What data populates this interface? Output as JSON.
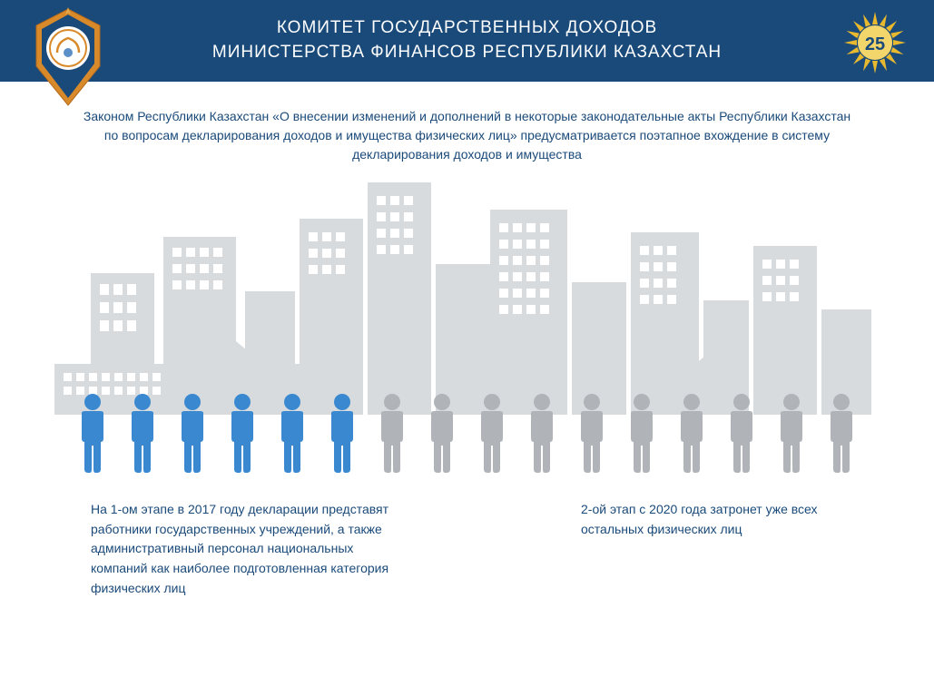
{
  "header": {
    "title_line1": "КОМИТЕТ ГОСУДАРСТВЕННЫХ ДОХОДОВ",
    "title_line2": "МИНИСТЕРСТВА ФИНАНСОВ РЕСПУБЛИКИ КАЗАХСТАН",
    "bg_color": "#1a4a7a",
    "text_color": "#ffffff",
    "anniversary_number": "25"
  },
  "body": {
    "text_color": "#1a4a7a",
    "background_color": "#ffffff"
  },
  "intro_text": "Законом Республики Казахстан «О внесении изменений и дополнений в некоторые законодательные акты Республики Казахстан по вопросам декларирования доходов и имущества физических лиц» предусматривается поэтапное вхождение в систему декларирования доходов и имущества",
  "infographic": {
    "type": "pictogram",
    "total_people": 16,
    "highlighted_count": 6,
    "highlighted_color": "#3a89d0",
    "muted_color": "#b0b4b8",
    "building_color": "#d8dbde",
    "window_color": "#ffffff"
  },
  "captions": {
    "stage1": "На 1-ом этапе в 2017 году декларации представят работники государственных учреждений, а также административный персонал национальных компаний как наиболее подготовленная категория физических лиц",
    "stage2": "2-ой этап с 2020 года затронет уже всех остальных физических лиц"
  }
}
